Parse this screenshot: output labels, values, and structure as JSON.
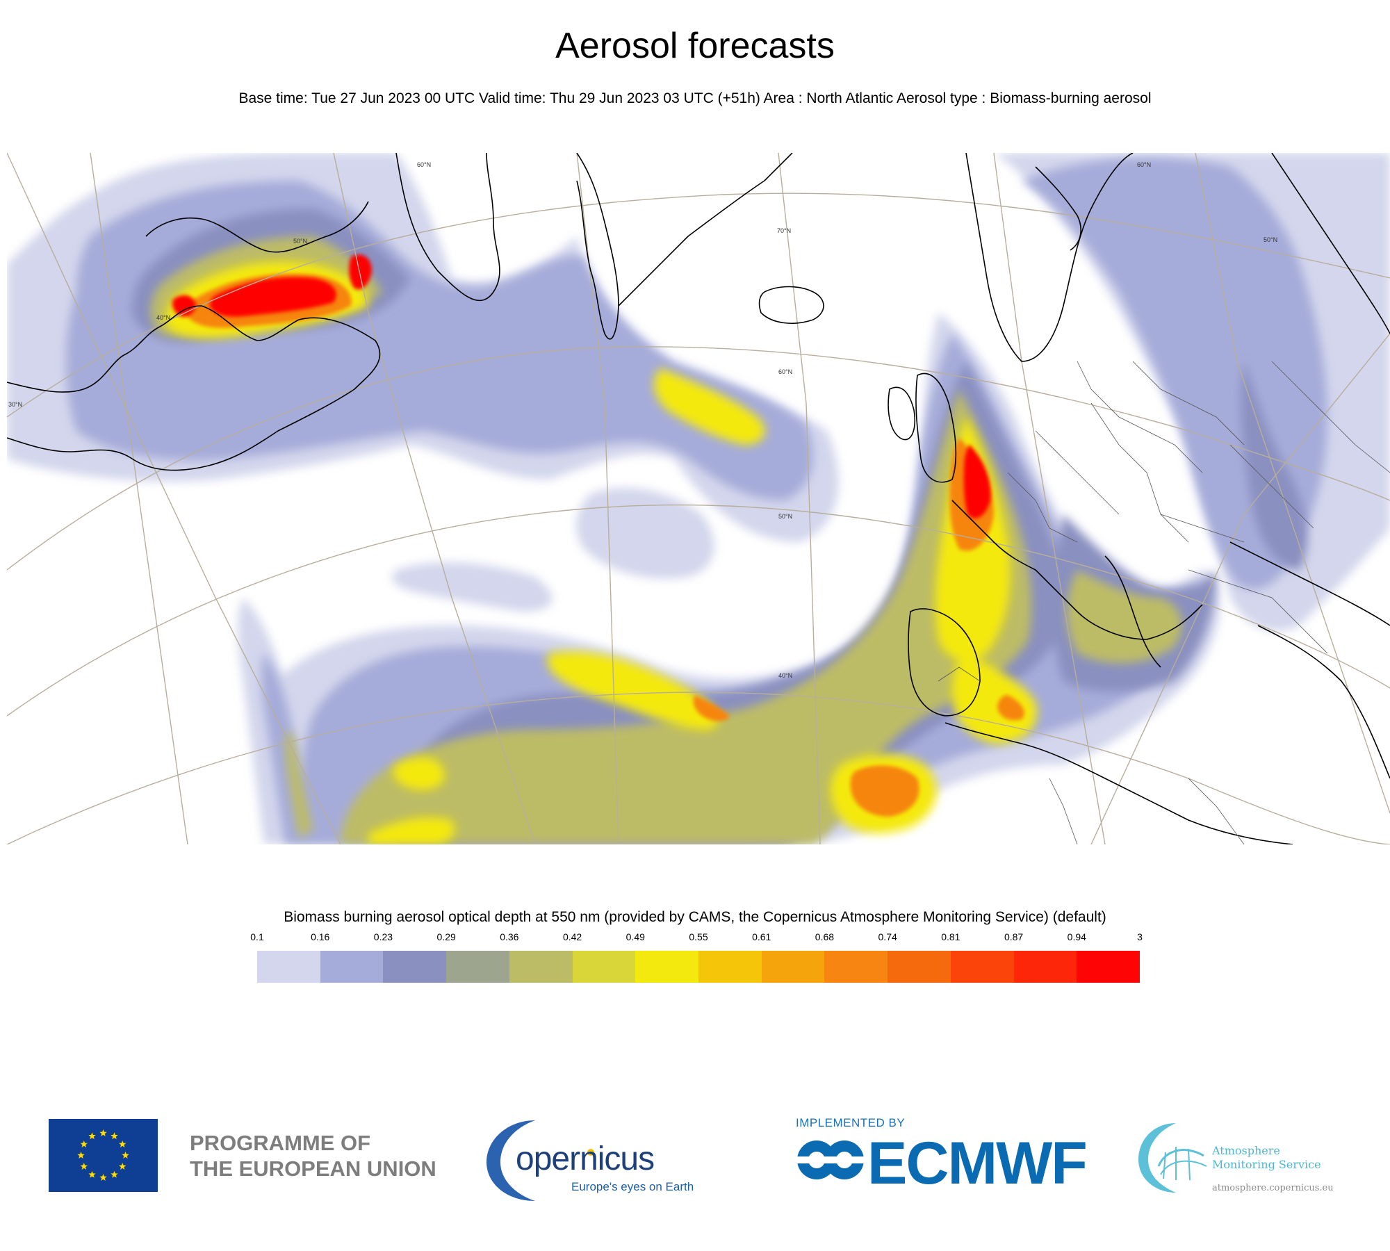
{
  "header": {
    "title": "Aerosol forecasts",
    "subtitle": "Base time: Tue 27 Jun 2023 00 UTC Valid time: Thu 29 Jun 2023 03 UTC (+51h) Area : North Atlantic Aerosol type : Biomass-burning aerosol"
  },
  "map": {
    "parallel_labels": [
      "30°N",
      "40°N",
      "50°N",
      "60°N",
      "70°N",
      "60°N",
      "50°N",
      "40°N",
      "50°N",
      "60°N"
    ],
    "colors": {
      "land_outline": "#000000",
      "graticule": "#b8ae9c"
    }
  },
  "legend": {
    "title": "Biomass burning aerosol optical depth at 550 nm (provided by CAMS, the Copernicus Atmosphere Monitoring Service) (default)",
    "ticks": [
      "0.1",
      "0.16",
      "0.23",
      "0.29",
      "0.36",
      "0.42",
      "0.49",
      "0.55",
      "0.61",
      "0.68",
      "0.74",
      "0.81",
      "0.87",
      "0.94",
      "3"
    ],
    "colors": [
      "#d3d6ec",
      "#a6acd9",
      "#8a90c0",
      "#9ea58e",
      "#bdbc66",
      "#d9d63a",
      "#f4e90f",
      "#f5c509",
      "#f6a40c",
      "#f68511",
      "#f66a0e",
      "#fb4409",
      "#fd2608",
      "#fe0404"
    ]
  },
  "footer": {
    "eu_text_line1": "PROGRAMME OF",
    "eu_text_line2": "THE EUROPEAN UNION",
    "copernicus_word": "opernicus",
    "copernicus_tagline": "Europe's eyes on Earth",
    "ecmwf_implemented": "IMPLEMENTED BY",
    "ecmwf_word": "ECMWF",
    "ams_line1": "Atmosphere",
    "ams_line2": "Monitoring Service",
    "ams_url": "atmosphere.copernicus.eu"
  }
}
